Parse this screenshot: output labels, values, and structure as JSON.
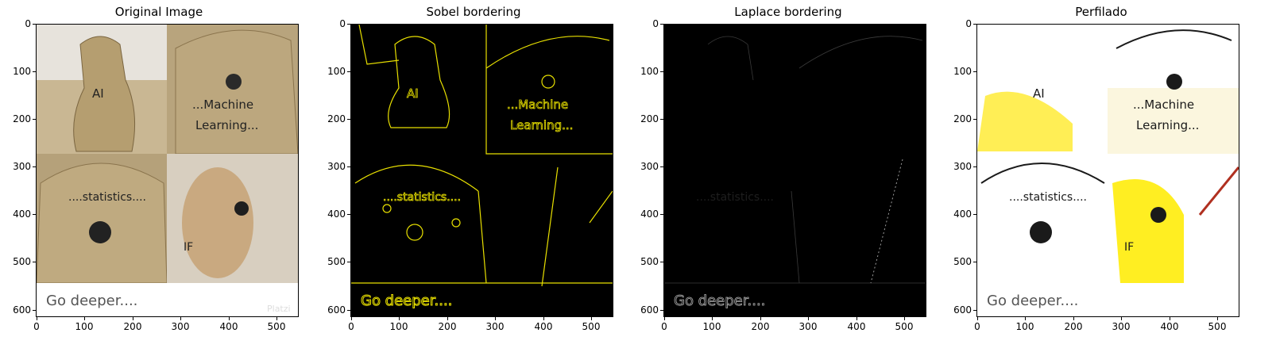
{
  "figure": {
    "panels": [
      {
        "title": "Original Image"
      },
      {
        "title": "Sobel bordering"
      },
      {
        "title": "Laplace bordering"
      },
      {
        "title": "Perfilado"
      }
    ],
    "y_ticks": [
      "0",
      "100",
      "200",
      "300",
      "400",
      "500",
      "600"
    ],
    "x_ticks": [
      "0",
      "100",
      "200",
      "300",
      "400",
      "500"
    ],
    "image_text": {
      "ai": "AI",
      "machine": "...Machine",
      "learning": "Learning...",
      "statistics": "....statistics....",
      "if": "IF",
      "go_deeper": "Go deeper....",
      "platzi_watermark": "Platzi"
    }
  }
}
